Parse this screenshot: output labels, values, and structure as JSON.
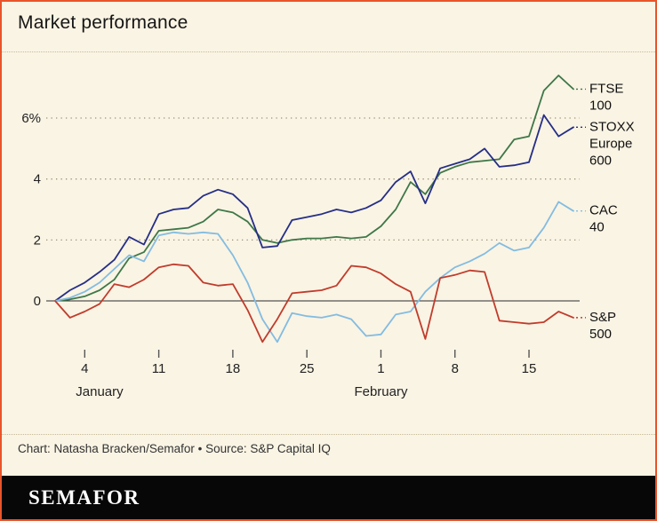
{
  "title": "Market performance",
  "footer": {
    "credit": "Chart: Natasha Bracken/Semafor • Source: S&P Capital IQ"
  },
  "brand": {
    "wordmark": "SEMAFOR"
  },
  "colors": {
    "frame_border": "#e8542b",
    "background": "#faf4e4",
    "brand_bar": "#070707",
    "zero_axis": "#2b2b2b",
    "gridline": "#9a9078"
  },
  "chart_data": {
    "type": "line",
    "title": "Market performance",
    "y_axis_unit": "%",
    "ylim": [
      -1.6,
      7.8
    ],
    "grid": "dotted horizontal at 2, 4, 6; solid zero line",
    "legend_position": "right-edge direct labels",
    "y_ticks": [
      {
        "label": "6%",
        "value": 6
      },
      {
        "label": "4",
        "value": 4
      },
      {
        "label": "2",
        "value": 2
      },
      {
        "label": "0",
        "value": 0
      }
    ],
    "x_dates": [
      "Jan 2",
      "Jan 3",
      "Jan 4",
      "Jan 5",
      "Jan 8",
      "Jan 9",
      "Jan 10",
      "Jan 11",
      "Jan 12",
      "Jan 15",
      "Jan 16",
      "Jan 17",
      "Jan 18",
      "Jan 19",
      "Jan 22",
      "Jan 23",
      "Jan 24",
      "Jan 25",
      "Jan 26",
      "Jan 29",
      "Jan 30",
      "Jan 31",
      "Feb 1",
      "Feb 2",
      "Feb 5",
      "Feb 6",
      "Feb 7",
      "Feb 8",
      "Feb 9",
      "Feb 12",
      "Feb 13",
      "Feb 14",
      "Feb 15",
      "Feb 16",
      "Feb 19",
      "Feb 20"
    ],
    "x_tick_labels": [
      "4",
      "11",
      "18",
      "25",
      "1",
      "8",
      "15"
    ],
    "x_tick_indices": [
      2,
      7,
      12,
      17,
      22,
      27,
      32
    ],
    "month_labels": [
      {
        "label": "January",
        "index": 3
      },
      {
        "label": "February",
        "index": 22
      }
    ],
    "series": [
      {
        "name": "FTSE 100",
        "label_lines": [
          "FTSE",
          "100"
        ],
        "color": "#3e7748",
        "values": [
          0,
          0.05,
          0.15,
          0.35,
          0.7,
          1.4,
          1.6,
          2.3,
          2.35,
          2.4,
          2.6,
          3.0,
          2.9,
          2.6,
          2.0,
          1.9,
          2.0,
          2.05,
          2.05,
          2.1,
          2.05,
          2.1,
          2.45,
          3.0,
          3.9,
          3.5,
          4.2,
          4.4,
          4.55,
          4.6,
          4.65,
          5.3,
          5.4,
          6.9,
          7.4,
          6.95
        ]
      },
      {
        "name": "STOXX Europe 600",
        "label_lines": [
          "STOXX",
          "Europe",
          "600"
        ],
        "color": "#252e87",
        "values": [
          0,
          0.35,
          0.6,
          0.95,
          1.35,
          2.1,
          1.85,
          2.85,
          3.0,
          3.05,
          3.45,
          3.65,
          3.5,
          3.05,
          1.75,
          1.8,
          2.65,
          2.75,
          2.85,
          3.0,
          2.9,
          3.05,
          3.3,
          3.9,
          4.25,
          3.2,
          4.35,
          4.5,
          4.65,
          5.0,
          4.4,
          4.45,
          4.55,
          6.1,
          5.4,
          5.7
        ]
      },
      {
        "name": "CAC 40",
        "label_lines": [
          "CAC",
          "40"
        ],
        "color": "#83bce1",
        "values": [
          0,
          0.1,
          0.3,
          0.6,
          1.05,
          1.5,
          1.3,
          2.15,
          2.25,
          2.2,
          2.25,
          2.2,
          1.5,
          0.6,
          -0.6,
          -1.35,
          -0.4,
          -0.5,
          -0.55,
          -0.45,
          -0.6,
          -1.15,
          -1.1,
          -0.45,
          -0.35,
          0.3,
          0.75,
          1.1,
          1.3,
          1.55,
          1.9,
          1.65,
          1.75,
          2.4,
          3.25,
          2.95
        ]
      },
      {
        "name": "S&P 500",
        "label_lines": [
          "S&P",
          "500"
        ],
        "color": "#c03c2c",
        "values": [
          0,
          -0.55,
          -0.35,
          -0.1,
          0.55,
          0.45,
          0.7,
          1.1,
          1.2,
          1.15,
          0.6,
          0.5,
          0.55,
          -0.3,
          -1.35,
          -0.6,
          0.25,
          0.3,
          0.35,
          0.5,
          1.15,
          1.1,
          0.9,
          0.55,
          0.3,
          -1.25,
          0.75,
          0.85,
          1.0,
          0.95,
          -0.65,
          -0.7,
          -0.75,
          -0.7,
          -0.35,
          -0.55
        ]
      }
    ]
  }
}
